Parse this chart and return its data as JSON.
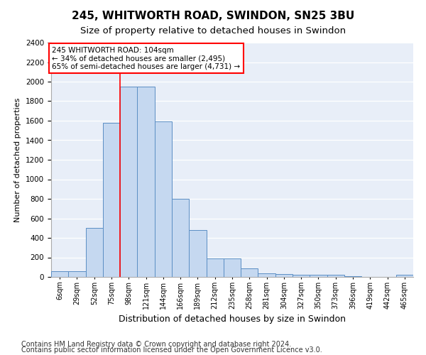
{
  "title1": "245, WHITWORTH ROAD, SWINDON, SN25 3BU",
  "title2": "Size of property relative to detached houses in Swindon",
  "xlabel": "Distribution of detached houses by size in Swindon",
  "ylabel": "Number of detached properties",
  "footnote1": "Contains HM Land Registry data © Crown copyright and database right 2024.",
  "footnote2": "Contains public sector information licensed under the Open Government Licence v3.0.",
  "annotation_line1": "245 WHITWORTH ROAD: 104sqm",
  "annotation_line2": "← 34% of detached houses are smaller (2,495)",
  "annotation_line3": "65% of semi-detached houses are larger (4,731) →",
  "bar_values": [
    60,
    60,
    500,
    1580,
    1950,
    1950,
    1590,
    800,
    480,
    190,
    190,
    90,
    35,
    30,
    20,
    20,
    20,
    5,
    0,
    0,
    20
  ],
  "bar_labels": [
    "6sqm",
    "29sqm",
    "52sqm",
    "75sqm",
    "98sqm",
    "121sqm",
    "144sqm",
    "166sqm",
    "189sqm",
    "212sqm",
    "235sqm",
    "258sqm",
    "281sqm",
    "304sqm",
    "327sqm",
    "350sqm",
    "373sqm",
    "396sqm",
    "419sqm",
    "442sqm",
    "465sqm"
  ],
  "bar_color": "#c5d8f0",
  "bar_edgecolor": "#5b8ec4",
  "redline_bar_index": 4,
  "ylim_max": 2400,
  "ytick_step": 200,
  "plot_bg_color": "#e8eef8",
  "grid_color": "#ffffff",
  "title1_fontsize": 11,
  "title2_fontsize": 9.5,
  "ylabel_fontsize": 8,
  "xlabel_fontsize": 9,
  "tick_fontsize": 7,
  "footnote_fontsize": 7
}
